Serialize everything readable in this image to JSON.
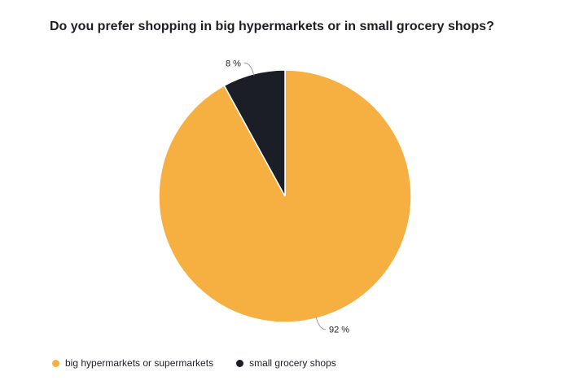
{
  "chart_data": {
    "type": "pie",
    "title": "Do you prefer shopping in big hypermarkets or in small grocery shops?",
    "slices": [
      {
        "label": "big hypermarkets or supermarkets",
        "value": 92,
        "display": "92 %",
        "color": "#f6b042"
      },
      {
        "label": "small grocery shops",
        "value": 8,
        "display": "8 %",
        "color": "#1b1e27"
      }
    ],
    "legend_position": "bottom-left"
  }
}
